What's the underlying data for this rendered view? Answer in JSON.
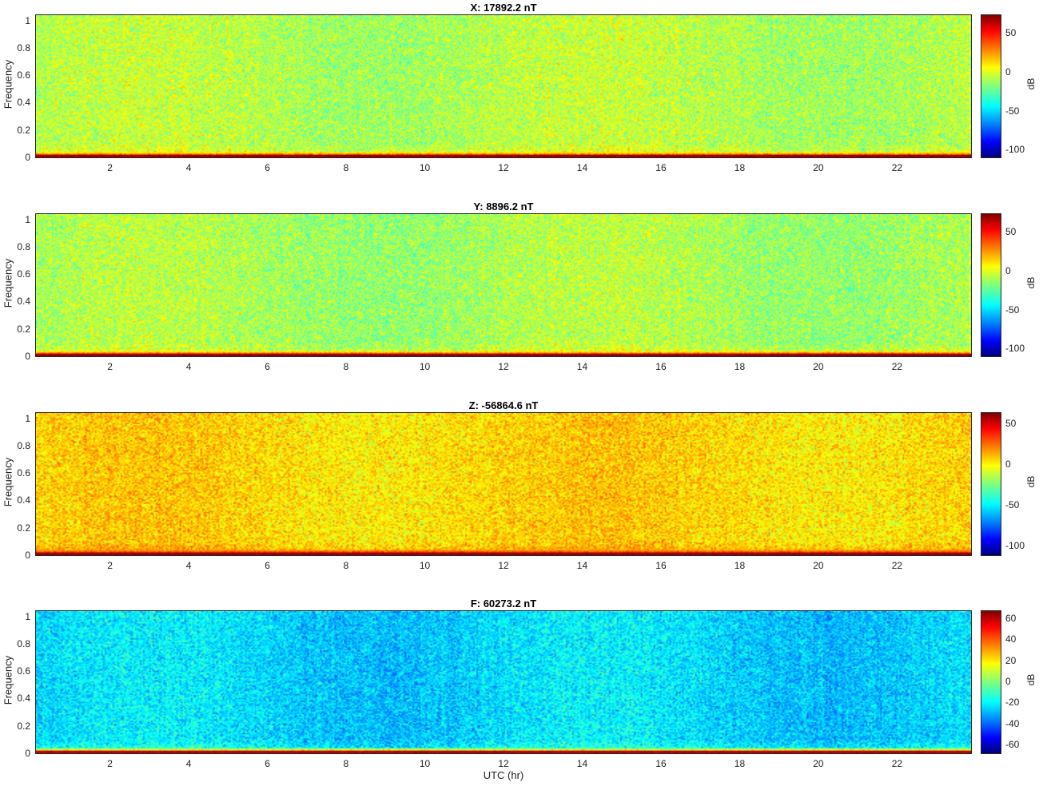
{
  "xlabel": "UTC (hr)",
  "chart_data": [
    {
      "type": "heatmap",
      "title": "X: 17892.2 nT",
      "ylabel": "Frequency",
      "xlabel": "",
      "colorbar_label": "dB",
      "colormap": "jet",
      "xlim": [
        0.1,
        23.9
      ],
      "ylim": [
        0,
        1.05
      ],
      "clim": [
        -110,
        75
      ],
      "x_ticks": [
        2,
        4,
        6,
        8,
        10,
        12,
        14,
        16,
        18,
        20,
        22
      ],
      "y_ticks": [
        0,
        0.2,
        0.4,
        0.6,
        0.8,
        1
      ],
      "colorbar_ticks": [
        -100,
        -50,
        0,
        50
      ],
      "background_level_db": -8,
      "low_frequency_level_db": 70
    },
    {
      "type": "heatmap",
      "title": "Y: 8896.2 nT",
      "ylabel": "Frequency",
      "xlabel": "",
      "colorbar_label": "dB",
      "colormap": "jet",
      "xlim": [
        0.1,
        23.9
      ],
      "ylim": [
        0,
        1.05
      ],
      "clim": [
        -110,
        75
      ],
      "x_ticks": [
        2,
        4,
        6,
        8,
        10,
        12,
        14,
        16,
        18,
        20,
        22
      ],
      "y_ticks": [
        0,
        0.2,
        0.4,
        0.6,
        0.8,
        1
      ],
      "colorbar_ticks": [
        -100,
        -50,
        0,
        50
      ],
      "background_level_db": -10,
      "low_frequency_level_db": 70
    },
    {
      "type": "heatmap",
      "title": "Z: -56864.6 nT",
      "ylabel": "Frequency",
      "xlabel": "",
      "colorbar_label": "dB",
      "colormap": "jet",
      "xlim": [
        0.1,
        23.9
      ],
      "ylim": [
        0,
        1.05
      ],
      "clim": [
        -112,
        65
      ],
      "x_ticks": [
        2,
        4,
        6,
        8,
        10,
        12,
        14,
        16,
        18,
        20,
        22
      ],
      "y_ticks": [
        0,
        0.2,
        0.4,
        0.6,
        0.8,
        1
      ],
      "colorbar_ticks": [
        -100,
        -50,
        0,
        50
      ],
      "background_level_db": 5,
      "low_frequency_level_db": 60
    },
    {
      "type": "heatmap",
      "title": "F: 60273.2 nT",
      "ylabel": "Frequency",
      "xlabel": "UTC (hr)",
      "colorbar_label": "dB",
      "colormap": "jet",
      "xlim": [
        0.1,
        23.9
      ],
      "ylim": [
        0,
        1.05
      ],
      "clim": [
        -68,
        68
      ],
      "x_ticks": [
        2,
        4,
        6,
        8,
        10,
        12,
        14,
        16,
        18,
        20,
        22
      ],
      "y_ticks": [
        0,
        0.2,
        0.4,
        0.6,
        0.8,
        1
      ],
      "colorbar_ticks": [
        -60,
        -40,
        -20,
        0,
        20,
        40,
        60
      ],
      "background_level_db": -22,
      "low_frequency_level_db": 60
    }
  ]
}
